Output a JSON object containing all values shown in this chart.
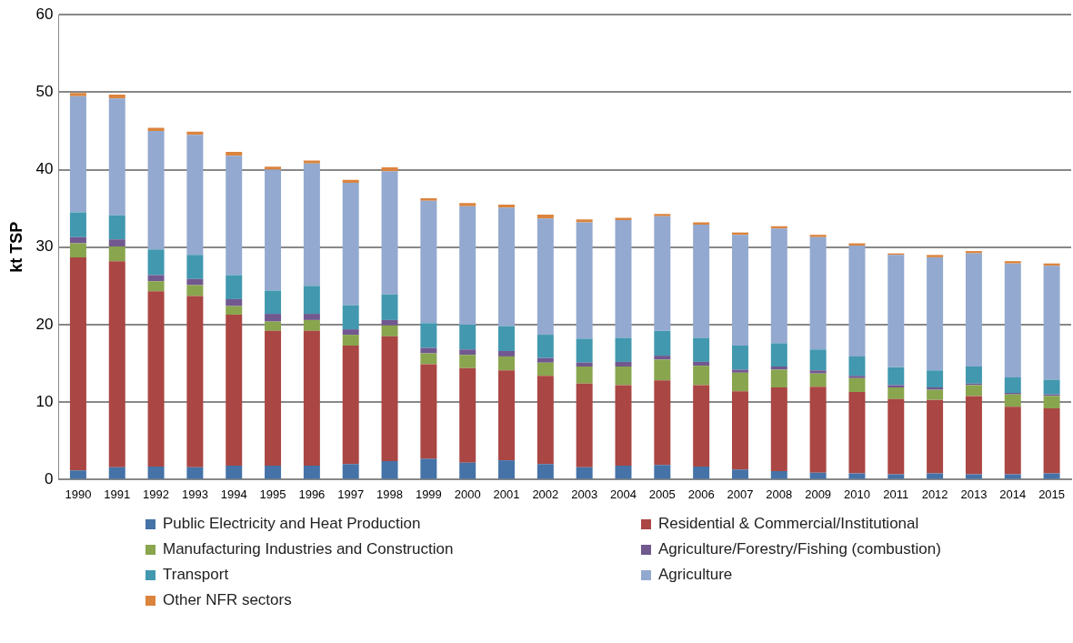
{
  "chart_data": {
    "type": "bar",
    "stacked": true,
    "ylabel": "kt TSP",
    "categories": [
      "1990",
      "1991",
      "1992",
      "1993",
      "1994",
      "1995",
      "1996",
      "1997",
      "1998",
      "1999",
      "2000",
      "2001",
      "2002",
      "2003",
      "2004",
      "2005",
      "2006",
      "2007",
      "2008",
      "2009",
      "2010",
      "2011",
      "2012",
      "2013",
      "2014",
      "2015"
    ],
    "ylim": [
      0,
      60
    ],
    "yticks": [
      0,
      10,
      20,
      30,
      40,
      50,
      60
    ],
    "grid": "y",
    "legend": "bottom",
    "series": [
      {
        "name": "Public Electricity and Heat Production",
        "color": "#4572a7",
        "values": [
          1.2,
          1.6,
          1.7,
          1.6,
          1.8,
          1.8,
          1.8,
          2.0,
          2.4,
          2.7,
          2.2,
          2.5,
          2.0,
          1.6,
          1.8,
          1.9,
          1.7,
          1.3,
          1.1,
          0.9,
          0.8,
          0.7,
          0.8,
          0.7,
          0.7,
          0.8
        ]
      },
      {
        "name": "Residential & Commercial/Institutional",
        "color": "#aa4643",
        "values": [
          27.5,
          26.6,
          22.6,
          22.1,
          19.5,
          17.4,
          17.4,
          15.3,
          16.1,
          12.2,
          12.2,
          11.6,
          11.4,
          10.8,
          10.4,
          10.9,
          10.5,
          10.1,
          10.8,
          11.1,
          10.5,
          9.7,
          9.5,
          10.1,
          8.7,
          8.4
        ]
      },
      {
        "name": "Manufacturing Industries and Construction",
        "color": "#89a54e",
        "values": [
          1.8,
          1.9,
          1.3,
          1.4,
          1.1,
          1.2,
          1.4,
          1.4,
          1.4,
          1.4,
          1.7,
          1.8,
          1.7,
          2.2,
          2.4,
          2.7,
          2.5,
          2.4,
          2.3,
          1.7,
          1.8,
          1.5,
          1.3,
          1.4,
          1.6,
          1.6
        ]
      },
      {
        "name": "Agriculture/Forestry/Fishing (combustion)",
        "color": "#71588f",
        "values": [
          0.8,
          0.9,
          0.8,
          0.8,
          0.9,
          1.0,
          0.8,
          0.7,
          0.7,
          0.7,
          0.7,
          0.7,
          0.6,
          0.5,
          0.6,
          0.5,
          0.5,
          0.4,
          0.4,
          0.4,
          0.3,
          0.3,
          0.3,
          0.2,
          0.2,
          0.2
        ]
      },
      {
        "name": "Transport",
        "color": "#4198af",
        "values": [
          3.2,
          3.1,
          3.3,
          3.1,
          3.1,
          3.0,
          3.6,
          3.1,
          3.3,
          3.2,
          3.2,
          3.2,
          3.0,
          3.1,
          3.1,
          3.2,
          3.1,
          3.1,
          3.0,
          2.7,
          2.5,
          2.3,
          2.2,
          2.2,
          2.0,
          1.9
        ]
      },
      {
        "name": "Agriculture",
        "color": "#93a9cf",
        "values": [
          15.0,
          15.1,
          15.3,
          15.5,
          15.4,
          15.6,
          15.8,
          15.8,
          15.9,
          15.8,
          15.3,
          15.3,
          15.0,
          15.0,
          15.2,
          14.8,
          14.6,
          14.3,
          14.8,
          14.5,
          14.3,
          14.5,
          14.6,
          14.6,
          14.7,
          14.7
        ]
      },
      {
        "name": "Other NFR sectors",
        "color": "#db843d",
        "values": [
          0.4,
          0.5,
          0.4,
          0.4,
          0.5,
          0.4,
          0.4,
          0.4,
          0.5,
          0.3,
          0.4,
          0.4,
          0.5,
          0.4,
          0.3,
          0.3,
          0.3,
          0.3,
          0.3,
          0.3,
          0.3,
          0.2,
          0.3,
          0.3,
          0.3,
          0.3
        ]
      }
    ]
  }
}
